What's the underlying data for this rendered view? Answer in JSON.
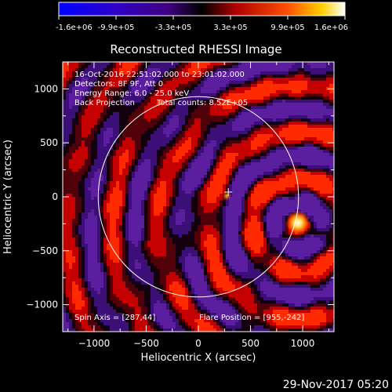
{
  "colorbar": {
    "ticks": [
      "-1.6e+06",
      "-9.9e+05",
      "-3.3e+05",
      "3.3e+05",
      "9.9e+05",
      "1.6e+06"
    ]
  },
  "title": "Reconstructed RHESSI Image",
  "info": {
    "line1": "16-Oct-2016 22:51:02.000 to 23:01:02.000",
    "line2": "Detectors: 8F 9F, Att 0",
    "line3": "Energy Range: 6.0 - 25.0 keV",
    "line4a": "Back Projection",
    "line4b": "Total counts: 8.52E+05",
    "spin_axis": "Spin Axis = [287,44]",
    "flare_position": "Flare Position = [955,-242]"
  },
  "axes": {
    "xlabel": "Heliocentric X (arcsec)",
    "ylabel": "Heliocentric Y (arcsec)",
    "xlim": [
      -1300,
      1300
    ],
    "ylim": [
      -1250,
      1250
    ],
    "xticks": [
      -1000,
      -500,
      0,
      500,
      1000
    ],
    "yticks": [
      -1000,
      -500,
      0,
      500,
      1000
    ],
    "xtick_labels": [
      "−1000",
      "−500",
      "0",
      "500",
      "1000"
    ],
    "ytick_labels": [
      "−1000",
      "−500",
      "0",
      "500",
      "1000"
    ]
  },
  "features": {
    "solar_limb_radius": 960,
    "flare_x": 955,
    "flare_y": -242,
    "spin_x": 287,
    "spin_y": 44
  },
  "timestamp": "29-Nov-2017 05:20"
}
